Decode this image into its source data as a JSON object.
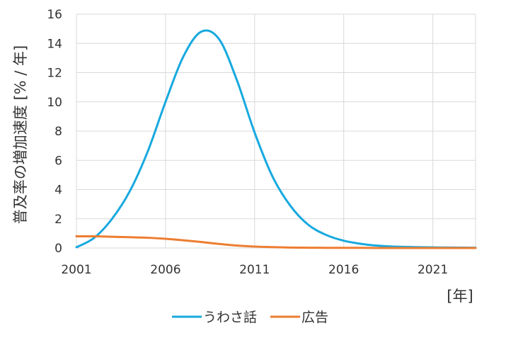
{
  "chart_data": {
    "type": "line",
    "title": "",
    "ylabel": "普及率の増加速度 [% / 年]",
    "xlabel": "[年]",
    "ylim": [
      0,
      16
    ],
    "yticks": [
      0,
      2,
      4,
      6,
      8,
      10,
      12,
      14,
      16
    ],
    "xlim": [
      2001,
      2023.4
    ],
    "xticks": [
      2001,
      2006,
      2011,
      2016,
      2021
    ],
    "grid": "vertical and horizontal",
    "legend_position": "bottom",
    "series": [
      {
        "name": "うわさ話",
        "color": "#17a9df",
        "x": [
          2001,
          2002,
          2003,
          2004,
          2005,
          2006,
          2007,
          2008,
          2009,
          2010,
          2011,
          2012,
          2013,
          2014,
          2015,
          2016,
          2017,
          2018,
          2019,
          2020,
          2021,
          2022,
          2023.4
        ],
        "values": [
          0.05,
          0.7,
          2.0,
          3.9,
          6.6,
          10.0,
          13.1,
          14.8,
          14.3,
          11.5,
          7.9,
          4.9,
          2.9,
          1.6,
          0.9,
          0.5,
          0.28,
          0.15,
          0.09,
          0.06,
          0.04,
          0.03,
          0.02
        ]
      },
      {
        "name": "広告",
        "color": "#ed7d31",
        "x": [
          2001,
          2002,
          2003,
          2004,
          2005,
          2006,
          2007,
          2008,
          2009,
          2010,
          2011,
          2012,
          2013,
          2014,
          2015,
          2016,
          2017,
          2018,
          2019,
          2020,
          2021,
          2022,
          2023.4
        ],
        "values": [
          0.8,
          0.8,
          0.77,
          0.74,
          0.7,
          0.63,
          0.53,
          0.41,
          0.28,
          0.17,
          0.1,
          0.06,
          0.03,
          0.02,
          0.01,
          0.01,
          0.01,
          0.0,
          0.0,
          0.0,
          0.0,
          0.0,
          0.0
        ]
      }
    ]
  }
}
